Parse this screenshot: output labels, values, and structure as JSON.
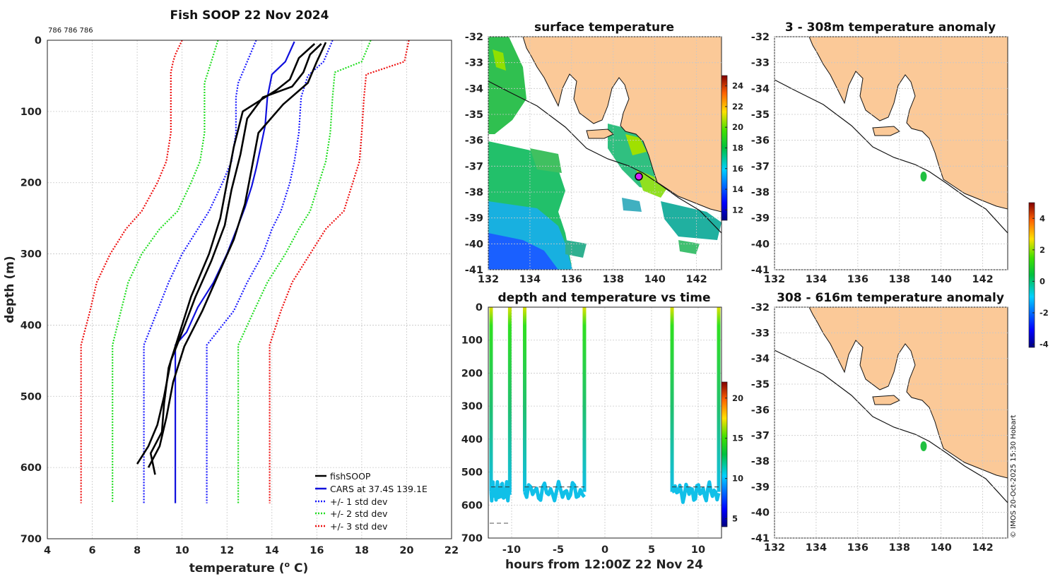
{
  "header": {
    "ids": "786 786 786",
    "stamp": "© IMOS 20-Oct-2025 15:30 Hobart"
  },
  "profile": {
    "title": "Fish SOOP 22 Nov 2024",
    "xlabel_main": "temperature (",
    "xlabel_sup": "o",
    "xlabel_end": " C)",
    "ylabel": "depth (m)",
    "xlim": [
      4,
      22
    ],
    "ylim": [
      0,
      700
    ],
    "xticks": [
      "4",
      "6",
      "8",
      "10",
      "12",
      "14",
      "16",
      "18",
      "20",
      "22"
    ],
    "yticks": [
      "0",
      "100",
      "200",
      "300",
      "400",
      "500",
      "600",
      "700"
    ],
    "legend": [
      "fishSOOP",
      "CARS at 37.4S 139.1E",
      "+/- 1 std dev",
      "+/- 2 std dev",
      "+/- 3 std dev"
    ],
    "colors": {
      "fish": "#000000",
      "cars": "#1010dd",
      "sd1": "#1a1aff",
      "sd2": "#22dd22",
      "sd3": "#ee1111"
    }
  },
  "chart_data": [
    {
      "type": "line",
      "title": "Fish SOOP 22 Nov 2024",
      "xlabel": "temperature (o C)",
      "ylabel": "depth (m)",
      "xlim": [
        4,
        22
      ],
      "ylim": [
        0,
        700
      ],
      "y_reversed": true,
      "series": [
        {
          "name": "CARS at 37.4S 139.1E",
          "points": [
            [
              15.0,
              2
            ],
            [
              14.6,
              30
            ],
            [
              14.0,
              48
            ],
            [
              13.8,
              80
            ],
            [
              13.7,
              120
            ],
            [
              13.5,
              150
            ],
            [
              13.3,
              180
            ],
            [
              13.1,
              205
            ],
            [
              12.8,
              235
            ],
            [
              12.5,
              260
            ],
            [
              12.0,
              300
            ],
            [
              11.4,
              340
            ],
            [
              10.7,
              375
            ],
            [
              10.2,
              410
            ],
            [
              9.7,
              428
            ],
            [
              9.7,
              650
            ]
          ]
        },
        {
          "name": "+/- 1 std dev",
          "points": [
            [
              13.3,
              0
            ],
            [
              12.9,
              30
            ],
            [
              12.5,
              60
            ],
            [
              12.4,
              80
            ],
            [
              12.4,
              130
            ],
            [
              12.2,
              170
            ],
            [
              11.8,
              200
            ],
            [
              11.2,
              240
            ],
            [
              10.7,
              265
            ],
            [
              10.0,
              300
            ],
            [
              9.4,
              340
            ],
            [
              8.9,
              380
            ],
            [
              8.3,
              428
            ],
            [
              8.3,
              650
            ]
          ]
        },
        {
          "name": "+/- 1 std dev (upper)",
          "points": [
            [
              16.7,
              0
            ],
            [
              16.3,
              30
            ],
            [
              15.6,
              50
            ],
            [
              15.3,
              80
            ],
            [
              15.2,
              130
            ],
            [
              15.0,
              170
            ],
            [
              14.8,
              200
            ],
            [
              14.4,
              240
            ],
            [
              14.0,
              265
            ],
            [
              13.6,
              300
            ],
            [
              12.9,
              340
            ],
            [
              12.3,
              380
            ],
            [
              11.1,
              428
            ],
            [
              11.1,
              650
            ]
          ]
        },
        {
          "name": "+/- 2 std dev",
          "points": [
            [
              11.6,
              0
            ],
            [
              11.3,
              30
            ],
            [
              11.0,
              60
            ],
            [
              11.0,
              130
            ],
            [
              10.8,
              170
            ],
            [
              10.4,
              200
            ],
            [
              9.8,
              240
            ],
            [
              9.0,
              265
            ],
            [
              8.2,
              300
            ],
            [
              7.6,
              340
            ],
            [
              7.2,
              390
            ],
            [
              6.9,
              428
            ],
            [
              6.9,
              650
            ]
          ]
        },
        {
          "name": "+/- 2 std dev (upper)",
          "points": [
            [
              18.4,
              0
            ],
            [
              18.0,
              30
            ],
            [
              16.8,
              45
            ],
            [
              16.7,
              80
            ],
            [
              16.6,
              130
            ],
            [
              16.4,
              170
            ],
            [
              16.1,
              200
            ],
            [
              15.7,
              240
            ],
            [
              15.2,
              265
            ],
            [
              14.6,
              300
            ],
            [
              13.8,
              340
            ],
            [
              13.2,
              380
            ],
            [
              12.5,
              428
            ],
            [
              12.5,
              650
            ]
          ]
        },
        {
          "name": "+/- 3 std dev",
          "points": [
            [
              10.0,
              0
            ],
            [
              9.7,
              20
            ],
            [
              9.6,
              30
            ],
            [
              9.5,
              45
            ],
            [
              9.5,
              130
            ],
            [
              9.3,
              170
            ],
            [
              8.9,
              200
            ],
            [
              8.2,
              240
            ],
            [
              7.5,
              265
            ],
            [
              6.8,
              300
            ],
            [
              6.2,
              340
            ],
            [
              5.9,
              380
            ],
            [
              5.5,
              428
            ],
            [
              5.5,
              650
            ]
          ]
        },
        {
          "name": "+/- 3 std dev (upper)",
          "points": [
            [
              20.1,
              0
            ],
            [
              19.9,
              30
            ],
            [
              18.2,
              48
            ],
            [
              18.1,
              80
            ],
            [
              18.0,
              130
            ],
            [
              17.9,
              170
            ],
            [
              17.6,
              200
            ],
            [
              17.2,
              240
            ],
            [
              16.4,
              265
            ],
            [
              15.7,
              300
            ],
            [
              14.9,
              340
            ],
            [
              14.4,
              380
            ],
            [
              13.9,
              428
            ],
            [
              13.9,
              650
            ]
          ]
        },
        {
          "name": "fishSOOP",
          "points": [
            [
              16.2,
              5
            ],
            [
              15.7,
              20
            ],
            [
              15.4,
              45
            ],
            [
              14.9,
              65
            ],
            [
              13.6,
              80
            ],
            [
              12.9,
              110
            ],
            [
              12.6,
              160
            ],
            [
              12.2,
              210
            ],
            [
              11.9,
              260
            ],
            [
              11.3,
              310
            ],
            [
              10.6,
              360
            ],
            [
              10.0,
              410
            ],
            [
              9.5,
              450
            ],
            [
              9.2,
              500
            ],
            [
              8.9,
              540
            ],
            [
              8.5,
              570
            ],
            [
              8.0,
              595
            ]
          ]
        },
        {
          "name": "fishSOOP cast 2",
          "points": [
            [
              15.9,
              5
            ],
            [
              15.2,
              25
            ],
            [
              14.8,
              55
            ],
            [
              14.2,
              70
            ],
            [
              12.7,
              100
            ],
            [
              12.3,
              150
            ],
            [
              12.0,
              200
            ],
            [
              11.7,
              250
            ],
            [
              11.2,
              300
            ],
            [
              10.4,
              360
            ],
            [
              9.9,
              410
            ],
            [
              9.4,
              460
            ],
            [
              9.2,
              510
            ],
            [
              9.1,
              550
            ],
            [
              8.6,
              580
            ],
            [
              8.8,
              610
            ]
          ]
        },
        {
          "name": "fishSOOP cast 3",
          "points": [
            [
              16.4,
              3
            ],
            [
              16.0,
              30
            ],
            [
              15.6,
              60
            ],
            [
              14.5,
              90
            ],
            [
              13.4,
              130
            ],
            [
              13.1,
              180
            ],
            [
              12.8,
              230
            ],
            [
              12.3,
              280
            ],
            [
              11.6,
              330
            ],
            [
              10.9,
              380
            ],
            [
              10.1,
              430
            ],
            [
              9.6,
              480
            ],
            [
              9.3,
              530
            ],
            [
              9.0,
              570
            ],
            [
              8.5,
              600
            ]
          ]
        }
      ]
    },
    {
      "type": "heatmap",
      "title": "surface temperature",
      "xlim": [
        132,
        143.2
      ],
      "ylim": [
        -41,
        -32
      ],
      "xticks": [
        "132",
        "134",
        "136",
        "138",
        "140",
        "142"
      ],
      "yticks": [
        "-32",
        "-33",
        "-34",
        "-35",
        "-36",
        "-37",
        "-38",
        "-39",
        "-40",
        "-41"
      ],
      "colorbar": {
        "range": [
          11,
          25
        ],
        "ticks": [
          "24",
          "22",
          "20",
          "18",
          "16",
          "14",
          "12"
        ]
      },
      "marker": {
        "lon": 139.1,
        "lat": -37.4
      }
    },
    {
      "type": "scatter",
      "title": "depth and temperature vs time",
      "xlabel": "hours from 12:00Z 22 Nov 24",
      "xlim": [
        -12.5,
        12.5
      ],
      "ylim": [
        0,
        700
      ],
      "xticks": [
        "-10",
        "-5",
        "0",
        "5",
        "10"
      ],
      "yticks": [
        "0",
        "100",
        "200",
        "300",
        "400",
        "500",
        "600",
        "700"
      ],
      "colorbar": {
        "range": [
          4,
          22
        ],
        "ticks": [
          "20",
          "15",
          "10",
          "5"
        ]
      },
      "casts": [
        {
          "start": -12.2,
          "end": -10.2,
          "deep": 560
        },
        {
          "start": -8.6,
          "end": -2.2,
          "deep": 560
        },
        {
          "start": 7.2,
          "end": 12.2,
          "deep": 560
        }
      ]
    },
    {
      "type": "heatmap",
      "title": "3 - 308m temperature anomaly",
      "xlim": [
        132,
        143.2
      ],
      "ylim": [
        -41,
        -32
      ],
      "xticks": [
        "132",
        "134",
        "136",
        "138",
        "140",
        "142"
      ],
      "yticks": [
        "-32",
        "-33",
        "-34",
        "-35",
        "-36",
        "-37",
        "-38",
        "-39",
        "-40",
        "-41"
      ],
      "point": {
        "lon": 139.05,
        "lat": -37.35,
        "anomaly": 0.2
      }
    },
    {
      "type": "heatmap",
      "title": "308 - 616m temperature anomaly",
      "xlim": [
        132,
        143.2
      ],
      "ylim": [
        -41,
        -32
      ],
      "xticks": [
        "132",
        "134",
        "136",
        "138",
        "140",
        "142"
      ],
      "yticks": [
        "-32",
        "-33",
        "-34",
        "-35",
        "-36",
        "-37",
        "-38",
        "-39",
        "-40",
        "-41"
      ],
      "point": {
        "lon": 139.05,
        "lat": -37.35,
        "anomaly": 0.2
      },
      "colorbar": {
        "range": [
          -4.2,
          5
        ],
        "ticks": [
          "4",
          "2",
          "0",
          "-2",
          "-4"
        ]
      }
    }
  ],
  "maps": {
    "sst_title": "surface temperature",
    "anom1_title": "3 - 308m temperature anomaly",
    "anom2_title": "308 - 616m temperature anomaly",
    "land_color": "#fbc998"
  },
  "timeplot": {
    "title": "depth and temperature vs time",
    "xlabel": "hours from 12:00Z 22 Nov 24"
  }
}
